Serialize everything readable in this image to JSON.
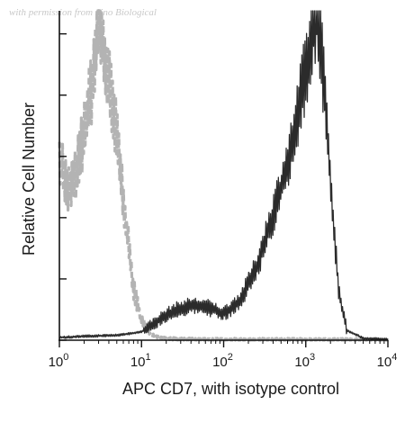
{
  "watermark": "with permission from Sino Biological",
  "chart_data": {
    "type": "line",
    "title": "",
    "xlabel": "APC CD7, with isotype control",
    "ylabel": "Relative Cell Number",
    "xscale": "log",
    "xlim": [
      1,
      10000
    ],
    "ylim": [
      0,
      100
    ],
    "ytick_labels": "none",
    "xticks": [
      {
        "value": 1,
        "base": "10",
        "exp": "0"
      },
      {
        "value": 10,
        "base": "10",
        "exp": "1"
      },
      {
        "value": 100,
        "base": "10",
        "exp": "2"
      },
      {
        "value": 1000,
        "base": "10",
        "exp": "3"
      },
      {
        "value": 10000,
        "base": "10",
        "exp": "4"
      }
    ],
    "yticks": [
      0,
      18.6,
      37.2,
      55.8,
      74.4,
      93
    ],
    "grid": false,
    "series": [
      {
        "role": "isotype control",
        "color": "#b3b3b3",
        "style": "dashed",
        "x": [
          1.0,
          1.26,
          1.58,
          2.0,
          2.51,
          3.16,
          3.5,
          3.98,
          5.0,
          6.31,
          7.94,
          10.0,
          12.6,
          15.8,
          20.0,
          31.6,
          100,
          1000,
          10000
        ],
        "y": [
          57,
          45,
          50,
          63,
          78,
          100,
          85,
          78,
          62,
          38,
          16,
          6,
          2,
          1,
          0.5,
          0.3,
          0.2,
          0.2,
          0.1
        ]
      },
      {
        "role": "APC CD7",
        "color": "#2b2b2b",
        "style": "solid",
        "x": [
          1.0,
          2.0,
          5.0,
          10.0,
          15.8,
          25.1,
          39.8,
          63.1,
          100,
          158,
          251,
          398,
          631,
          794,
          1000,
          1260,
          1410,
          1580,
          2000,
          2510,
          3160,
          5010,
          10000
        ],
        "y": [
          0.8,
          1.2,
          1.5,
          2.5,
          6,
          9,
          10.5,
          10,
          8,
          12,
          22,
          38,
          55,
          68,
          82,
          95,
          100,
          85,
          48,
          15,
          3,
          0.6,
          0.2
        ]
      }
    ]
  }
}
